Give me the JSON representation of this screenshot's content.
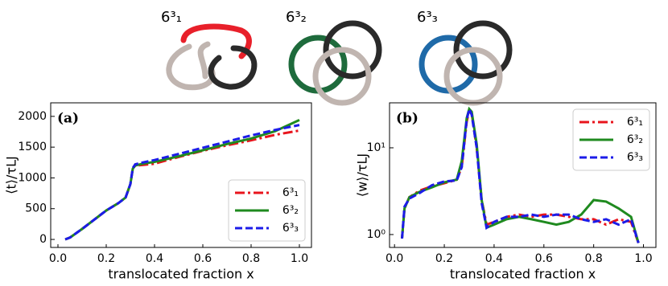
{
  "knot_labels": [
    "6³₁",
    "6³₂",
    "6³₃"
  ],
  "chart_data": [
    {
      "type": "line",
      "title": "(a)",
      "xlabel": "translocated fraction x",
      "ylabel": "⟨t⟩/τLJ",
      "xlim": [
        -0.03,
        1.05
      ],
      "ylim": [
        -130,
        2220
      ],
      "xticks": [
        {
          "value": 0,
          "label": "0.0"
        },
        0.2,
        0.4,
        0.6,
        0.8,
        {
          "value": 1,
          "label": "1.0"
        }
      ],
      "yticks": [
        0,
        500,
        1000,
        1500,
        2000
      ],
      "legend": "lower right",
      "x": [
        0.03,
        0.05,
        0.1,
        0.15,
        0.2,
        0.25,
        0.28,
        0.3,
        0.31,
        0.32,
        0.35,
        0.4,
        0.5,
        0.6,
        0.7,
        0.8,
        0.9,
        1.0
      ],
      "series": [
        {
          "name": "6³₁",
          "color": "#e8141c",
          "linestyle": "dashdot",
          "values": [
            0,
            30,
            170,
            320,
            470,
            590,
            680,
            900,
            1150,
            1200,
            1210,
            1230,
            1340,
            1440,
            1530,
            1610,
            1700,
            1770
          ]
        },
        {
          "name": "6³₂",
          "color": "#1f8a1f",
          "linestyle": "solid",
          "values": [
            0,
            30,
            170,
            320,
            470,
            590,
            680,
            900,
            1150,
            1200,
            1230,
            1260,
            1350,
            1450,
            1550,
            1640,
            1760,
            1940
          ]
        },
        {
          "name": "6³₃",
          "color": "#1c1ce8",
          "linestyle": "dashed",
          "values": [
            0,
            30,
            170,
            320,
            470,
            590,
            680,
            900,
            1160,
            1220,
            1250,
            1290,
            1390,
            1490,
            1590,
            1690,
            1780,
            1860
          ]
        }
      ]
    },
    {
      "type": "line",
      "title": "(b)",
      "xlabel": "translocated fraction x",
      "ylabel": "⟨w⟩/τLJ",
      "log_y": true,
      "xlim": [
        -0.02,
        1.05
      ],
      "ylim": [
        0.71,
        33
      ],
      "xticks": [
        {
          "value": 0,
          "label": "0.0"
        },
        0.2,
        0.4,
        0.6,
        0.8,
        {
          "value": 1,
          "label": "1.0"
        }
      ],
      "yticks": [
        {
          "value": 1,
          "label": "10⁰"
        },
        {
          "value": 10,
          "label": "10¹"
        }
      ],
      "legend": "upper right",
      "x": [
        0.03,
        0.04,
        0.06,
        0.1,
        0.15,
        0.2,
        0.25,
        0.27,
        0.29,
        0.3,
        0.31,
        0.33,
        0.35,
        0.37,
        0.4,
        0.45,
        0.5,
        0.55,
        0.6,
        0.65,
        0.7,
        0.75,
        0.8,
        0.85,
        0.9,
        0.95,
        0.98
      ],
      "series": [
        {
          "name": "6³₁",
          "color": "#e8141c",
          "linestyle": "dashdot",
          "values": [
            0.9,
            2.0,
            2.7,
            3.2,
            3.6,
            3.9,
            4.3,
            6,
            20,
            27,
            25,
            10,
            2.5,
            1.3,
            1.4,
            1.6,
            1.7,
            1.6,
            1.7,
            1.7,
            1.6,
            1.5,
            1.5,
            1.3,
            1.5,
            1.4,
            0.8
          ]
        },
        {
          "name": "6³₂",
          "color": "#1f8a1f",
          "linestyle": "solid",
          "values": [
            0.9,
            2.0,
            2.7,
            3.1,
            3.5,
            4.0,
            4.3,
            7,
            22,
            28,
            26,
            11,
            2.5,
            1.2,
            1.3,
            1.5,
            1.6,
            1.5,
            1.4,
            1.3,
            1.4,
            1.7,
            2.5,
            2.4,
            2.0,
            1.6,
            0.8
          ]
        },
        {
          "name": "6³₃",
          "color": "#1c1ce8",
          "linestyle": "dashed",
          "values": [
            0.9,
            2.1,
            2.6,
            3.0,
            3.7,
            4.1,
            4.2,
            6,
            21,
            28,
            24,
            10,
            2.3,
            1.2,
            1.4,
            1.6,
            1.6,
            1.7,
            1.6,
            1.7,
            1.7,
            1.5,
            1.4,
            1.5,
            1.3,
            1.5,
            0.8
          ]
        }
      ]
    }
  ]
}
